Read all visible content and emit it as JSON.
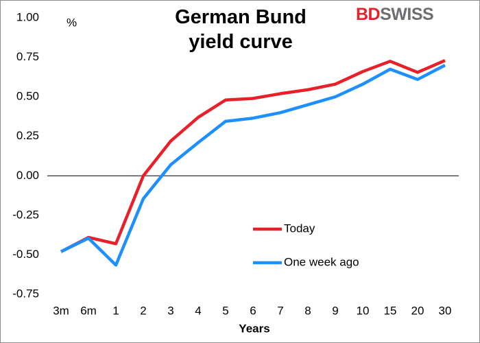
{
  "chart_data": {
    "type": "line",
    "title": "German Bund yield curve",
    "y_unit_label": "%",
    "xlabel": "Years",
    "logo": [
      "BD",
      "SWISS"
    ],
    "categories": [
      "3m",
      "6m",
      "1",
      "2",
      "3",
      "4",
      "5",
      "6",
      "7",
      "8",
      "9",
      "10",
      "15",
      "20",
      "30"
    ],
    "series": [
      {
        "name": "Today",
        "color": "#e8202a",
        "values": [
          -0.48,
          -0.39,
          -0.43,
          0.0,
          0.22,
          0.37,
          0.48,
          0.49,
          0.52,
          0.545,
          0.58,
          0.66,
          0.725,
          0.655,
          0.73
        ]
      },
      {
        "name": "One week ago",
        "color": "#1e8fff",
        "values": [
          -0.48,
          -0.395,
          -0.565,
          -0.145,
          0.07,
          0.21,
          0.345,
          0.365,
          0.4,
          0.45,
          0.5,
          0.58,
          0.675,
          0.61,
          0.7
        ]
      }
    ],
    "ylim": [
      -0.75,
      1.0
    ],
    "yticks": [
      {
        "value": -0.75,
        "label": "-0.75"
      },
      {
        "value": -0.5,
        "label": "-0.50"
      },
      {
        "value": -0.25,
        "label": "-0.25"
      },
      {
        "value": 0,
        "label": "0.00"
      },
      {
        "value": 0.25,
        "label": "0.25"
      },
      {
        "value": 0.5,
        "label": "0.50"
      },
      {
        "value": 0.75,
        "label": "0.75"
      },
      {
        "value": 1.0,
        "label": "1.00"
      }
    ],
    "grid": false
  }
}
